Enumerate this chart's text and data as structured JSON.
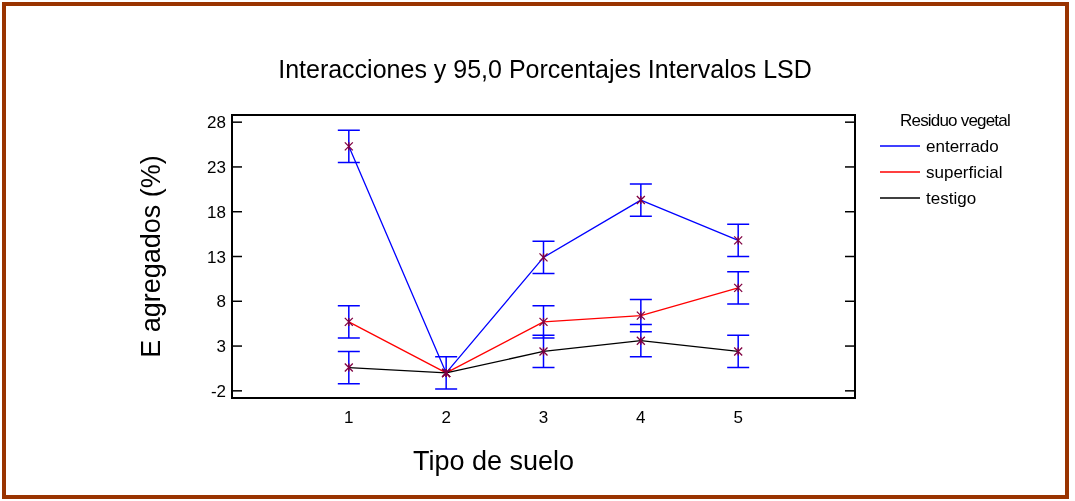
{
  "chart_data": {
    "type": "line",
    "title": "Interacciones y 95,0 Porcentajes Intervalos LSD",
    "xlabel": "Tipo de suelo",
    "ylabel": "E agregados (%)",
    "legend_title": "Residuo vegetal",
    "legend": "top right",
    "marker": "cross",
    "line_style": "solid",
    "grid": false,
    "x": [
      1,
      2,
      3,
      4,
      5
    ],
    "xlim": [
      -0.2,
      6.2
    ],
    "xticks": [
      1,
      2,
      3,
      4,
      5
    ],
    "ylim": [
      -2.8,
      28.8
    ],
    "yticks": [
      -2,
      3,
      8,
      13,
      18,
      23,
      28
    ],
    "series": [
      {
        "name": "enterrado",
        "color": "#0000ff",
        "values": [
          25.3,
          0.0,
          12.9,
          19.3,
          14.8
        ],
        "errors": [
          1.8,
          1.8,
          1.8,
          1.8,
          1.8
        ]
      },
      {
        "name": "superficial",
        "color": "#ff0000",
        "values": [
          5.7,
          0.0,
          5.7,
          6.4,
          9.5
        ],
        "errors": [
          1.8,
          null,
          1.8,
          1.8,
          1.8
        ]
      },
      {
        "name": "testigo",
        "color": "#000000",
        "values": [
          0.6,
          0.0,
          2.4,
          3.6,
          2.4
        ],
        "errors": [
          1.8,
          null,
          1.8,
          1.8,
          1.8
        ]
      }
    ]
  }
}
